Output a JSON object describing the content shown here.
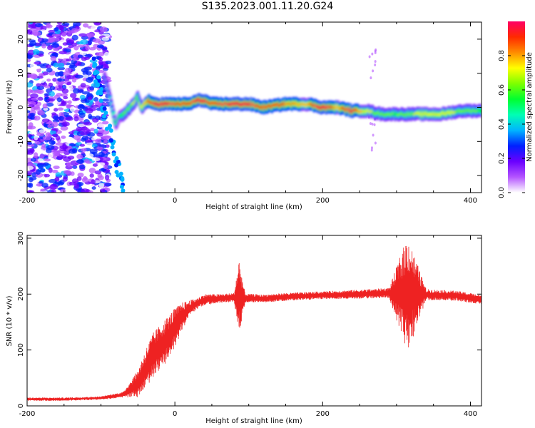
{
  "figure": {
    "title": "S135.2023.001.11.20.G24"
  },
  "colorbar": {
    "label": "Normalized spectral amplitude",
    "ticks": [
      0.0,
      0.2,
      0.4,
      0.6,
      0.8
    ],
    "tick_labels": [
      "0.0",
      "0.2",
      "0.4",
      "0.6",
      "0.8"
    ],
    "range": [
      0,
      1
    ],
    "colors": [
      "#ffffff",
      "#b455ff",
      "#6a00ff",
      "#0020ff",
      "#00b4ff",
      "#00ffb4",
      "#00ff30",
      "#7dff00",
      "#ffff00",
      "#ff8c00",
      "#ff2a00",
      "#ff0066"
    ]
  },
  "chart_data": [
    {
      "type": "heatmap",
      "xlabel": "Height of straight line (km)",
      "ylabel": "Frequency (Hz)",
      "xlim": [
        -200,
        415
      ],
      "ylim": [
        -25,
        25
      ],
      "x_ticks": [
        -200,
        0,
        200,
        400
      ],
      "x_tick_labels": [
        "-200",
        "0",
        "200",
        "400"
      ],
      "y_ticks": [
        -20,
        -10,
        0,
        10,
        20
      ],
      "y_tick_labels": [
        "-20",
        "-10",
        "0",
        "10",
        "20"
      ],
      "ridge": {
        "x": [
          -95,
          -90,
          -85,
          -80,
          -75,
          -70,
          -65,
          -60,
          -55,
          -50,
          -45,
          -40,
          -35,
          -30,
          -20,
          0,
          20,
          30,
          40,
          50,
          60,
          80,
          100,
          120,
          150,
          180,
          200,
          220,
          240,
          260,
          280,
          300,
          330,
          360,
          390,
          415
        ],
        "y": [
          9,
          5,
          0,
          -5,
          -3,
          -2,
          -1,
          0,
          1,
          3,
          0,
          1,
          2,
          1,
          1,
          1,
          1,
          2,
          2,
          1,
          1,
          1,
          1,
          0,
          1,
          1,
          0,
          0,
          -1,
          -1,
          -2,
          -2,
          -2,
          -2,
          -1,
          -1
        ],
        "amplitude": [
          0.3,
          0.35,
          0.4,
          0.45,
          0.45,
          0.5,
          0.55,
          0.55,
          0.6,
          0.55,
          0.6,
          0.7,
          0.75,
          0.8,
          0.9,
          0.8,
          0.75,
          0.85,
          0.85,
          0.75,
          0.8,
          0.85,
          0.85,
          0.75,
          0.75,
          0.7,
          0.9,
          0.7,
          0.85,
          0.6,
          0.55,
          0.5,
          0.6,
          0.65,
          0.55,
          0.5
        ]
      }
    },
    {
      "type": "line",
      "xlabel": "Height of straight line (km)",
      "ylabel": "SNR (10 * v/v)",
      "xlim": [
        -200,
        415
      ],
      "ylim": [
        0,
        305
      ],
      "x_ticks": [
        -200,
        0,
        200,
        400
      ],
      "x_tick_labels": [
        "-200",
        "0",
        "200",
        "400"
      ],
      "y_ticks": [
        0,
        100,
        200,
        300
      ],
      "y_tick_labels": [
        "0",
        "100",
        "200",
        "300"
      ],
      "color": "#ee2222",
      "series": [
        {
          "x": [
            -200,
            -150,
            -100,
            -70,
            -50,
            -40,
            -30,
            -20,
            -10,
            0,
            10,
            20,
            30,
            40,
            60,
            80,
            87,
            95,
            120,
            150,
            200,
            250,
            290,
            315,
            340,
            380,
            415
          ],
          "y": [
            12,
            12,
            14,
            20,
            40,
            65,
            90,
            105,
            120,
            140,
            160,
            175,
            183,
            190,
            192,
            194,
            195,
            193,
            192,
            195,
            198,
            200,
            202,
            200,
            199,
            197,
            190
          ],
          "noise": [
            3,
            3,
            3,
            5,
            25,
            35,
            40,
            40,
            40,
            35,
            25,
            14,
            10,
            10,
            8,
            8,
            70,
            8,
            7,
            7,
            7,
            8,
            9,
            105,
            10,
            9,
            9
          ]
        }
      ]
    }
  ]
}
